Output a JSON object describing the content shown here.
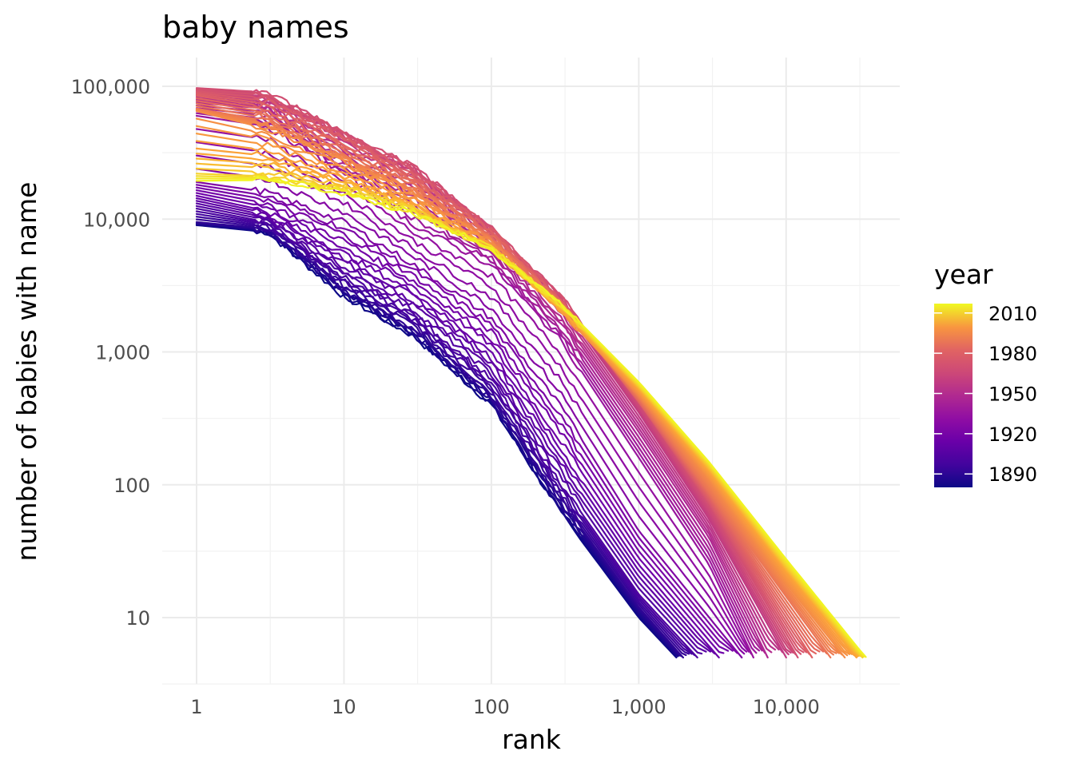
{
  "chart_data": {
    "type": "line",
    "title": "baby names",
    "xlabel": "rank",
    "ylabel": "number of babies with name",
    "x_scale": "log10",
    "y_scale": "log10",
    "xlim": [
      1,
      37000
    ],
    "ylim": [
      5,
      100000
    ],
    "x_ticks": [
      {
        "value": 1,
        "label": "1"
      },
      {
        "value": 10,
        "label": "10"
      },
      {
        "value": 100,
        "label": "100"
      },
      {
        "value": 1000,
        "label": "1,000"
      },
      {
        "value": 10000,
        "label": "10,000"
      }
    ],
    "y_ticks": [
      {
        "value": 10,
        "label": "10"
      },
      {
        "value": 100,
        "label": "100"
      },
      {
        "value": 1000,
        "label": "1,000"
      },
      {
        "value": 10000,
        "label": "10,000"
      },
      {
        "value": 100000,
        "label": "100,000"
      }
    ],
    "grid": true,
    "color_scale": "plasma",
    "legend": {
      "title": "year",
      "position": "right",
      "min": 1880,
      "max": 2017,
      "breaks": [
        {
          "value": 2010,
          "label": "2010"
        },
        {
          "value": 1980,
          "label": "1980"
        },
        {
          "value": 1950,
          "label": "1950"
        },
        {
          "value": 1920,
          "label": "1920"
        },
        {
          "value": 1890,
          "label": "1890"
        }
      ]
    },
    "series_note_years": [
      1880,
      2017
    ],
    "series": [
      {
        "year": 1880,
        "points": [
          [
            1,
            9000
          ],
          [
            3,
            8000
          ],
          [
            10,
            2600
          ],
          [
            30,
            1300
          ],
          [
            100,
            400
          ],
          [
            300,
            60
          ],
          [
            1000,
            10
          ],
          [
            1800,
            5
          ]
        ]
      },
      {
        "year": 1890,
        "points": [
          [
            1,
            9500
          ],
          [
            3,
            8500
          ],
          [
            10,
            3000
          ],
          [
            30,
            1500
          ],
          [
            100,
            470
          ],
          [
            300,
            75
          ],
          [
            1000,
            12
          ],
          [
            2000,
            5
          ]
        ]
      },
      {
        "year": 1900,
        "points": [
          [
            1,
            12000
          ],
          [
            3,
            9500
          ],
          [
            10,
            3800
          ],
          [
            30,
            1900
          ],
          [
            100,
            620
          ],
          [
            300,
            100
          ],
          [
            1000,
            15
          ],
          [
            2500,
            5
          ]
        ]
      },
      {
        "year": 1910,
        "points": [
          [
            1,
            15000
          ],
          [
            3,
            11500
          ],
          [
            10,
            5500
          ],
          [
            30,
            2800
          ],
          [
            100,
            1000
          ],
          [
            300,
            180
          ],
          [
            1000,
            25
          ],
          [
            3500,
            5
          ]
        ]
      },
      {
        "year": 1920,
        "points": [
          [
            1,
            19000
          ],
          [
            3,
            16000
          ],
          [
            10,
            9500
          ],
          [
            30,
            4500
          ],
          [
            100,
            1800
          ],
          [
            300,
            380
          ],
          [
            1000,
            45
          ],
          [
            5000,
            5
          ]
        ]
      },
      {
        "year": 1930,
        "points": [
          [
            1,
            60000
          ],
          [
            3,
            50000
          ],
          [
            10,
            22000
          ],
          [
            30,
            9000
          ],
          [
            100,
            4500
          ],
          [
            300,
            1200
          ],
          [
            1000,
            160
          ],
          [
            3000,
            25
          ],
          [
            6000,
            5
          ]
        ]
      },
      {
        "year": 1940,
        "points": [
          [
            1,
            75000
          ],
          [
            3,
            68000
          ],
          [
            10,
            28000
          ],
          [
            30,
            16000
          ],
          [
            100,
            6000
          ],
          [
            300,
            1700
          ],
          [
            1000,
            250
          ],
          [
            3000,
            40
          ],
          [
            7500,
            5
          ]
        ]
      },
      {
        "year": 1950,
        "points": [
          [
            1,
            86000
          ],
          [
            3,
            80000
          ],
          [
            10,
            40000
          ],
          [
            30,
            22000
          ],
          [
            100,
            7500
          ],
          [
            300,
            2300
          ],
          [
            1000,
            350
          ],
          [
            3000,
            55
          ],
          [
            10000,
            5
          ]
        ]
      },
      {
        "year": 1960,
        "points": [
          [
            1,
            97000
          ],
          [
            3,
            90000
          ],
          [
            10,
            45000
          ],
          [
            30,
            25000
          ],
          [
            100,
            8500
          ],
          [
            300,
            2600
          ],
          [
            1000,
            420
          ],
          [
            3000,
            70
          ],
          [
            12000,
            5
          ]
        ]
      },
      {
        "year": 1970,
        "points": [
          [
            1,
            85000
          ],
          [
            3,
            70000
          ],
          [
            10,
            38000
          ],
          [
            30,
            20000
          ],
          [
            100,
            8000
          ],
          [
            300,
            2300
          ],
          [
            1000,
            420
          ],
          [
            3000,
            80
          ],
          [
            15000,
            5
          ]
        ]
      },
      {
        "year": 1980,
        "points": [
          [
            1,
            68000
          ],
          [
            3,
            55000
          ],
          [
            10,
            30000
          ],
          [
            30,
            17000
          ],
          [
            100,
            7000
          ],
          [
            300,
            2200
          ],
          [
            1000,
            450
          ],
          [
            3000,
            90
          ],
          [
            20000,
            5
          ]
        ]
      },
      {
        "year": 1990,
        "points": [
          [
            1,
            65000
          ],
          [
            3,
            48000
          ],
          [
            10,
            27000
          ],
          [
            30,
            15000
          ],
          [
            100,
            6500
          ],
          [
            300,
            2000
          ],
          [
            1000,
            480
          ],
          [
            3000,
            110
          ],
          [
            10000,
            18
          ],
          [
            25000,
            5
          ]
        ]
      },
      {
        "year": 2000,
        "points": [
          [
            1,
            34000
          ],
          [
            3,
            30000
          ],
          [
            10,
            20000
          ],
          [
            30,
            12500
          ],
          [
            100,
            6000
          ],
          [
            300,
            2100
          ],
          [
            1000,
            520
          ],
          [
            3000,
            125
          ],
          [
            10000,
            22
          ],
          [
            30000,
            5
          ]
        ]
      },
      {
        "year": 2010,
        "points": [
          [
            1,
            22000
          ],
          [
            3,
            21000
          ],
          [
            10,
            17000
          ],
          [
            30,
            11500
          ],
          [
            100,
            6000
          ],
          [
            300,
            2200
          ],
          [
            1000,
            560
          ],
          [
            3000,
            140
          ],
          [
            10000,
            25
          ],
          [
            33000,
            5
          ]
        ]
      },
      {
        "year": 2017,
        "points": [
          [
            1,
            19000
          ],
          [
            3,
            19500
          ],
          [
            10,
            15500
          ],
          [
            30,
            11000
          ],
          [
            100,
            6000
          ],
          [
            300,
            2300
          ],
          [
            1000,
            600
          ],
          [
            3000,
            150
          ],
          [
            10000,
            28
          ],
          [
            35000,
            5
          ]
        ]
      }
    ]
  }
}
